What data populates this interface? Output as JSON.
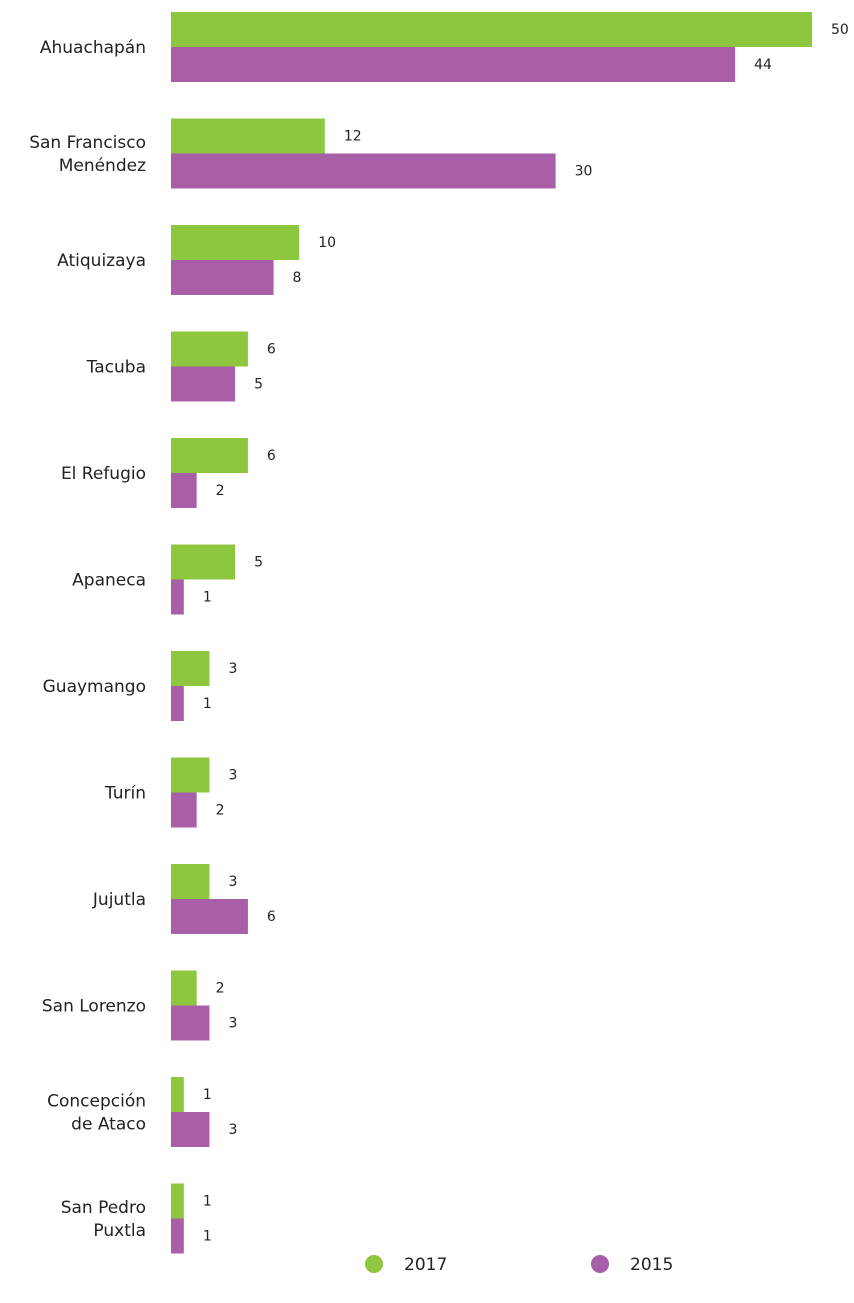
{
  "chart_data": {
    "type": "bar",
    "orientation": "horizontal",
    "title": "",
    "xlabel": "",
    "ylabel": "",
    "categories": [
      [
        "Ahuachapán"
      ],
      [
        "San Francisco",
        "Menéndez"
      ],
      [
        "Atiquizaya"
      ],
      [
        "Tacuba"
      ],
      [
        "El Refugio"
      ],
      [
        "Apaneca"
      ],
      [
        "Guaymango"
      ],
      [
        "Turín"
      ],
      [
        "Jujutla"
      ],
      [
        "San Lorenzo"
      ],
      [
        "Concepción",
        "de Ataco"
      ],
      [
        "San Pedro",
        "Puxtla"
      ]
    ],
    "series": [
      {
        "name": "2017",
        "color": "#8dc63f",
        "values": [
          50,
          12,
          10,
          6,
          6,
          5,
          3,
          3,
          3,
          2,
          1,
          1
        ]
      },
      {
        "name": "2015",
        "color": "#a95ea8",
        "values": [
          44,
          30,
          8,
          5,
          2,
          1,
          1,
          2,
          6,
          3,
          3,
          1
        ]
      }
    ],
    "xlim": [
      0,
      50
    ],
    "grid": false,
    "legend": "bottom"
  }
}
